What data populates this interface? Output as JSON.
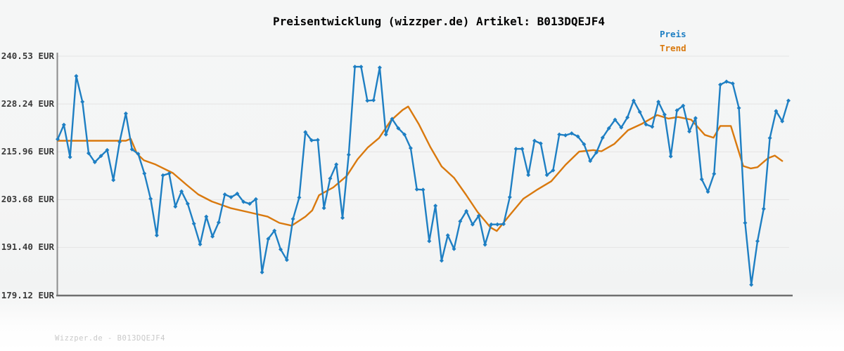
{
  "title": "Preisentwicklung (wizzper.de) Artikel: B013DQEJF4",
  "legend": {
    "price_label": "Preis",
    "trend_label": "Trend"
  },
  "footer": "Wizzper.de - B013DQEJF4",
  "colors": {
    "price": "#1e7fc3",
    "trend": "#d9790e",
    "grid": "#e4e4e4",
    "axis_left": "#8c8c8c",
    "axis_bottom": "#6f6f6f",
    "tick_text": "#3a3a3a",
    "footer_text": "#c9c9c9",
    "title_text": "#000000"
  },
  "chart_data": {
    "type": "line",
    "title": "Preisentwicklung (wizzper.de) Artikel: B013DQEJF4",
    "xlabel": "",
    "ylabel": "EUR",
    "x_unit": "day-index",
    "ylim": [
      179.12,
      240.53
    ],
    "y_ticks": [
      240.53,
      228.24,
      215.96,
      203.68,
      191.4,
      179.12
    ],
    "y_tick_labels": [
      "240.53 EUR",
      "228.24 EUR",
      "215.96 EUR",
      "203.68 EUR",
      "191.40 EUR",
      "179.12 EUR"
    ],
    "grid": "horizontal",
    "legend_position": "top-right",
    "series": [
      {
        "name": "Preis",
        "type": "line-with-diamond-markers",
        "values": [
          219.2,
          222.9,
          214.6,
          235.4,
          228.8,
          215.6,
          213.3,
          214.9,
          216.4,
          208.7,
          218.5,
          225.8,
          216.6,
          215.4,
          210.4,
          203.9,
          194.5,
          209.9,
          210.4,
          201.9,
          205.8,
          202.6,
          197.5,
          192.2,
          199.3,
          194.2,
          197.8,
          205.0,
          204.3,
          205.2,
          203.1,
          202.6,
          203.8,
          185.0,
          193.6,
          195.7,
          190.9,
          188.2,
          198.7,
          204.2,
          221.0,
          218.9,
          219.0,
          201.5,
          209.1,
          212.7,
          199.0,
          215.2,
          237.8,
          237.8,
          229.1,
          229.2,
          237.6,
          220.4,
          224.4,
          222.0,
          220.4,
          216.9,
          206.3,
          206.2,
          193.0,
          202.1,
          188.0,
          194.5,
          191.0,
          198.1,
          200.7,
          197.3,
          199.5,
          192.1,
          197.3,
          197.3,
          197.4,
          204.3,
          216.7,
          216.7,
          210.0,
          218.8,
          218.1,
          210.0,
          211.2,
          220.4,
          220.2,
          220.7,
          219.9,
          217.9,
          213.6,
          215.8,
          219.6,
          222.0,
          224.2,
          222.2,
          224.8,
          229.1,
          226.2,
          223.0,
          222.4,
          228.8,
          225.5,
          214.8,
          226.6,
          227.8,
          221.2,
          224.6,
          208.9,
          205.7,
          210.3,
          233.2,
          234.0,
          233.5,
          227.2,
          197.7,
          181.8,
          193.0,
          201.3,
          219.5,
          226.4,
          223.8,
          229.1
        ]
      },
      {
        "name": "Trend",
        "type": "smooth-line",
        "points": [
          [
            0,
            218.8
          ],
          [
            11.0,
            218.8
          ],
          [
            11.8,
            219.3
          ],
          [
            12.8,
            215.5
          ],
          [
            13.9,
            213.8
          ],
          [
            15.8,
            212.7
          ],
          [
            18.6,
            210.5
          ],
          [
            20.8,
            207.5
          ],
          [
            22.7,
            205.0
          ],
          [
            24.9,
            203.2
          ],
          [
            27.9,
            201.5
          ],
          [
            30.7,
            200.5
          ],
          [
            33.9,
            199.3
          ],
          [
            35.8,
            197.7
          ],
          [
            37.8,
            197.0
          ],
          [
            40.0,
            199.3
          ],
          [
            41.1,
            200.9
          ],
          [
            42.2,
            204.8
          ],
          [
            44.5,
            206.8
          ],
          [
            46.7,
            209.8
          ],
          [
            48.4,
            214.0
          ],
          [
            50.1,
            217.1
          ],
          [
            51.9,
            219.5
          ],
          [
            53.8,
            224.0
          ],
          [
            55.7,
            226.7
          ],
          [
            56.6,
            227.6
          ],
          [
            58.3,
            223.1
          ],
          [
            60.2,
            217.1
          ],
          [
            62.0,
            212.2
          ],
          [
            64.0,
            209.3
          ],
          [
            65.9,
            205.0
          ],
          [
            67.8,
            200.5
          ],
          [
            69.9,
            196.5
          ],
          [
            70.9,
            195.6
          ],
          [
            73.0,
            199.7
          ],
          [
            75.2,
            203.9
          ],
          [
            77.5,
            206.3
          ],
          [
            79.7,
            208.4
          ],
          [
            82.0,
            212.6
          ],
          [
            84.2,
            216.0
          ],
          [
            86.5,
            216.4
          ],
          [
            87.8,
            216.1
          ],
          [
            89.9,
            218.0
          ],
          [
            92.1,
            221.5
          ],
          [
            94.4,
            223.2
          ],
          [
            96.8,
            225.4
          ],
          [
            98.6,
            224.5
          ],
          [
            100.2,
            224.9
          ],
          [
            102.3,
            224.2
          ],
          [
            104.5,
            220.3
          ],
          [
            105.9,
            219.6
          ],
          [
            107.0,
            222.6
          ],
          [
            108.7,
            222.6
          ],
          [
            110.7,
            212.3
          ],
          [
            111.9,
            211.7
          ],
          [
            113.0,
            212.0
          ],
          [
            114.7,
            214.3
          ],
          [
            115.8,
            215.0
          ],
          [
            117.0,
            213.6
          ]
        ]
      }
    ]
  }
}
